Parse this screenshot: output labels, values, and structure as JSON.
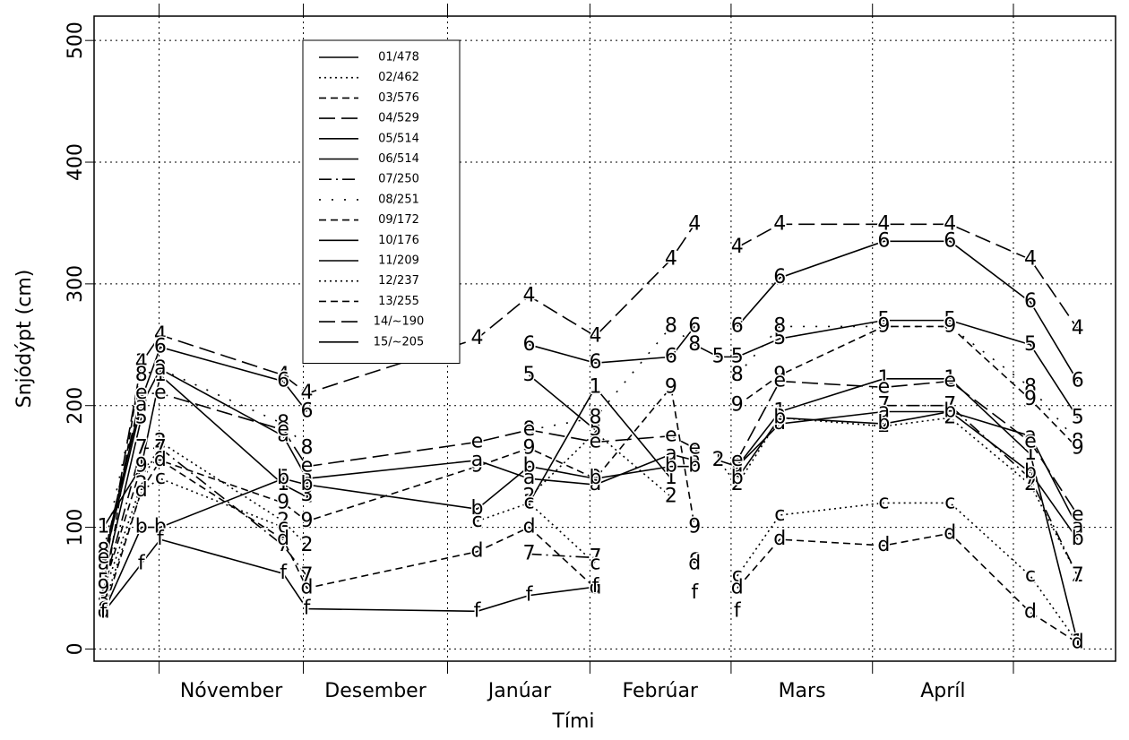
{
  "chart_data": {
    "type": "line",
    "ylabel": "Snjódýpt (cm)",
    "xlabel": "Tími",
    "x": [
      19,
      27,
      31,
      57,
      62,
      98,
      109,
      123,
      139,
      144,
      149,
      153,
      162,
      184,
      198,
      215,
      225
    ],
    "xlim": [
      17,
      233
    ],
    "xticks": [
      {
        "value": 46,
        "label": "Nóvember"
      },
      {
        "value": 76.5,
        "label": "Desember"
      },
      {
        "value": 107,
        "label": "Janúar"
      },
      {
        "value": 136.7,
        "label": "Febrúar"
      },
      {
        "value": 166.7,
        "label": "Mars"
      },
      {
        "value": 196.5,
        "label": "Apríl"
      }
    ],
    "ylim": [
      -10,
      520
    ],
    "yticks": [
      0,
      100,
      200,
      300,
      400,
      500
    ],
    "grid": true,
    "legend": "top-left",
    "series": [
      {
        "name": "01/478",
        "marker": "1",
        "dash": "solid",
        "color": "#000000",
        "values": [
          100,
          150,
          225,
          135,
          125,
          null,
          120,
          215,
          140,
          null,
          155,
          150,
          195,
          222,
          222,
          160,
          5
        ]
      },
      {
        "name": "02/462",
        "marker": "2",
        "dash": "dotted",
        "color": "#000000",
        "values": [
          45,
          135,
          170,
          105,
          85,
          null,
          125,
          178,
          125,
          null,
          155,
          135,
          190,
          183,
          190,
          135,
          60
        ]
      },
      {
        "name": "03/576",
        "marker": "3",
        "dash": "dashed",
        "color": "#000000",
        "values": [
          40,
          235,
          null,
          null,
          126,
          null,
          null,
          null,
          null,
          null,
          null,
          null,
          null,
          null,
          null,
          null,
          null
        ]
      },
      {
        "name": "04/529",
        "marker": "4",
        "dash": "longdash",
        "color": "#000000",
        "values": [
          60,
          235,
          258,
          225,
          210,
          255,
          290,
          257,
          320,
          349,
          null,
          330,
          349,
          349,
          349,
          320,
          263
        ]
      },
      {
        "name": "05/514",
        "marker": "5",
        "dash": "solid",
        "color": "#000000",
        "values": [
          55,
          190,
          null,
          140,
          null,
          null,
          225,
          180,
          null,
          250,
          240,
          240,
          255,
          270,
          270,
          250,
          190
        ]
      },
      {
        "name": "06/514",
        "marker": "6",
        "dash": "solid",
        "color": "#000000",
        "values": [
          75,
          205,
          248,
          220,
          195,
          null,
          250,
          235,
          240,
          265,
          null,
          265,
          305,
          335,
          335,
          285,
          220
        ]
      },
      {
        "name": "07/250",
        "marker": "7",
        "dash": "dotdash",
        "color": "#000000",
        "values": [
          50,
          165,
          165,
          85,
          60,
          null,
          78,
          75,
          null,
          160,
          null,
          150,
          null,
          200,
          200,
          140,
          60
        ]
      },
      {
        "name": "08/251",
        "marker": "8",
        "dash": "sparse",
        "color": "#000000",
        "values": [
          80,
          225,
          230,
          185,
          165,
          null,
          180,
          190,
          265,
          250,
          null,
          225,
          265,
          265,
          265,
          215,
          170
        ]
      },
      {
        "name": "09/172",
        "marker": "9",
        "dash": "dashed",
        "color": "#000000",
        "values": [
          50,
          150,
          155,
          120,
          105,
          150,
          165,
          140,
          215,
          100,
          null,
          200,
          225,
          265,
          265,
          205,
          165
        ]
      },
      {
        "name": "10/176",
        "marker": "a",
        "dash": "solid",
        "color": "#000000",
        "values": [
          70,
          200,
          230,
          175,
          140,
          155,
          140,
          135,
          160,
          155,
          null,
          150,
          185,
          195,
          195,
          175,
          100
        ]
      },
      {
        "name": "11/209",
        "marker": "b",
        "dash": "solid",
        "color": "#000000",
        "values": [
          30,
          100,
          100,
          140,
          135,
          115,
          150,
          140,
          150,
          150,
          null,
          140,
          190,
          185,
          195,
          145,
          90
        ]
      },
      {
        "name": "12/237",
        "marker": "c",
        "dash": "dotted",
        "color": "#000000",
        "values": [
          35,
          130,
          140,
          100,
          null,
          105,
          120,
          70,
          null,
          75,
          null,
          60,
          110,
          120,
          120,
          60,
          5
        ]
      },
      {
        "name": "13/255",
        "marker": "d",
        "dash": "dashed",
        "color": "#000000",
        "values": [
          30,
          130,
          155,
          90,
          50,
          80,
          100,
          50,
          null,
          70,
          null,
          50,
          90,
          85,
          95,
          30,
          5
        ]
      },
      {
        "name": "14/~190",
        "marker": "e",
        "dash": "longdash",
        "color": "#000000",
        "values": [
          75,
          210,
          210,
          180,
          150,
          170,
          180,
          170,
          175,
          165,
          null,
          155,
          220,
          215,
          220,
          170,
          110
        ]
      },
      {
        "name": "15/~205",
        "marker": "f",
        "dash": "solid",
        "color": "#000000",
        "values": [
          30,
          70,
          90,
          62,
          33,
          31,
          44,
          51,
          null,
          46,
          null,
          31,
          null,
          null,
          null,
          null,
          null
        ]
      }
    ]
  }
}
